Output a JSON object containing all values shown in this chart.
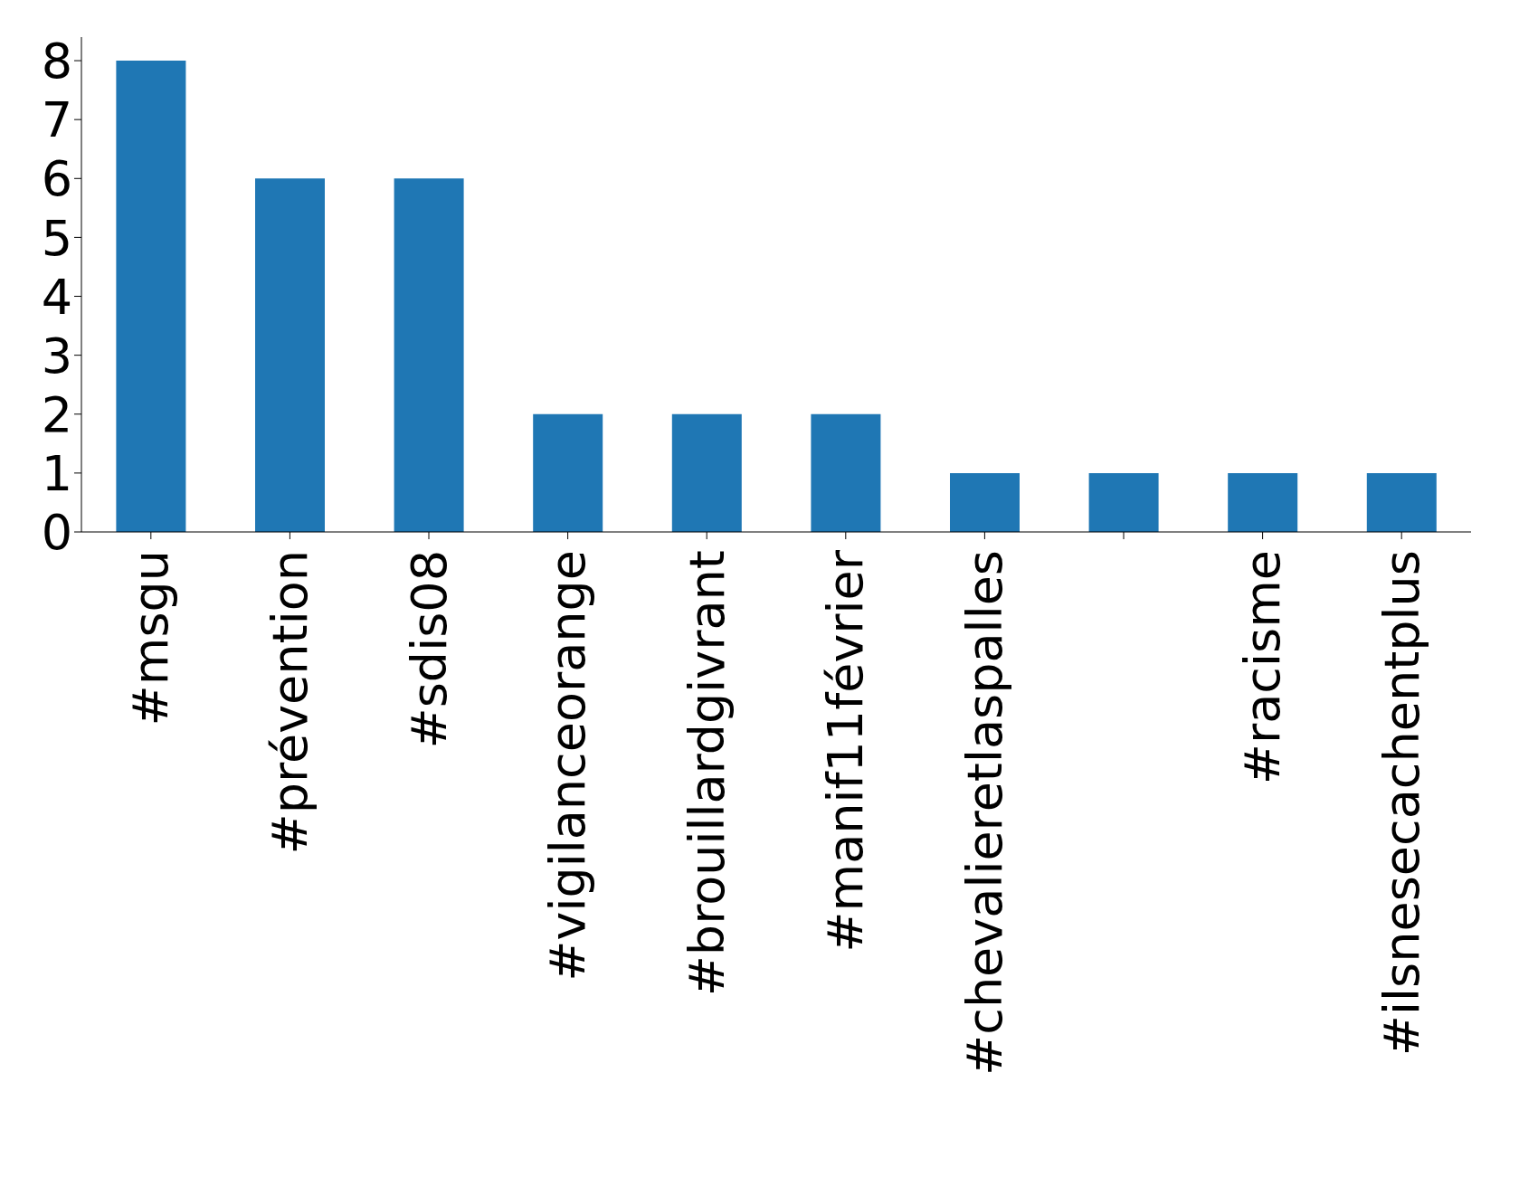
{
  "chart_data": {
    "type": "bar",
    "categories": [
      "#msgu",
      "#prévention",
      "#sdis08",
      "#vigilanceorange",
      "#brouillardgivrant",
      "#manif11février",
      "#chevalieretlaspalles",
      null,
      "#racisme",
      "#ilsnesecachentplus"
    ],
    "values": [
      8,
      6,
      6,
      2,
      2,
      2,
      1,
      1,
      1,
      1
    ],
    "color": "#1f77b4",
    "ylim": [
      0,
      8.4
    ],
    "yticks": [
      0,
      1,
      2,
      3,
      4,
      5,
      6,
      7,
      8
    ],
    "grid": false,
    "legend": false
  }
}
